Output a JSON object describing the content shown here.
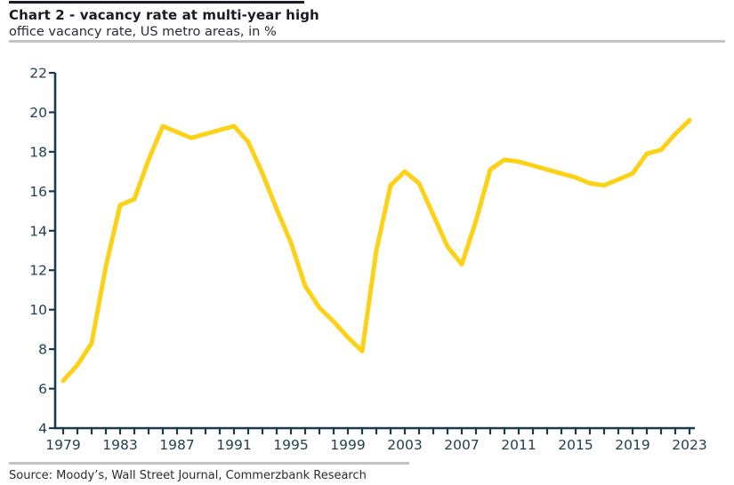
{
  "header": {
    "title": "Chart 2 - vacancy rate at multi-year high",
    "subtitle": "office vacancy rate, US metro areas, in %"
  },
  "footer": {
    "source": "Source: Moody’s, Wall Street Journal, Commerzbank Research"
  },
  "colors": {
    "line": "#FCD116",
    "axis": "#1C3B4B",
    "tick_label": "#24404D",
    "title_text": "#1A1A24",
    "divider_gray": "#C3C3C3",
    "title_rule_dark": "#1E1E2A"
  },
  "chart_data": {
    "type": "line",
    "title": "Chart 2 - vacancy rate at multi-year high",
    "subtitle": "office vacancy rate, US metro areas, in %",
    "series_name": "office vacancy rate (%)",
    "x": [
      1979,
      1980,
      1981,
      1982,
      1983,
      1984,
      1985,
      1986,
      1987,
      1988,
      1989,
      1990,
      1991,
      1992,
      1993,
      1994,
      1995,
      1996,
      1997,
      1998,
      1999,
      2000,
      2001,
      2002,
      2003,
      2004,
      2005,
      2006,
      2007,
      2008,
      2009,
      2010,
      2011,
      2012,
      2013,
      2014,
      2015,
      2016,
      2017,
      2018,
      2019,
      2020,
      2021,
      2022,
      2023
    ],
    "values": [
      6.4,
      7.2,
      8.3,
      12.2,
      15.3,
      15.6,
      17.6,
      19.3,
      19.0,
      18.7,
      18.9,
      19.1,
      19.3,
      18.5,
      16.9,
      15.1,
      13.4,
      11.2,
      10.1,
      9.4,
      8.6,
      7.9,
      13.0,
      16.3,
      17.0,
      16.4,
      14.8,
      13.2,
      12.3,
      14.5,
      17.1,
      17.6,
      17.5,
      17.3,
      17.1,
      16.9,
      16.7,
      16.4,
      16.3,
      16.6,
      16.9,
      17.9,
      18.1,
      18.9,
      19.6
    ],
    "xlabel": "",
    "ylabel": "",
    "ylim": [
      4,
      22
    ],
    "ytick_step": 2,
    "xtick_every_years": 1,
    "xtick_label_every": 4,
    "grid": false,
    "legend": "none",
    "line_color": "#FCD116",
    "axis_color": "#1C3B4B"
  }
}
